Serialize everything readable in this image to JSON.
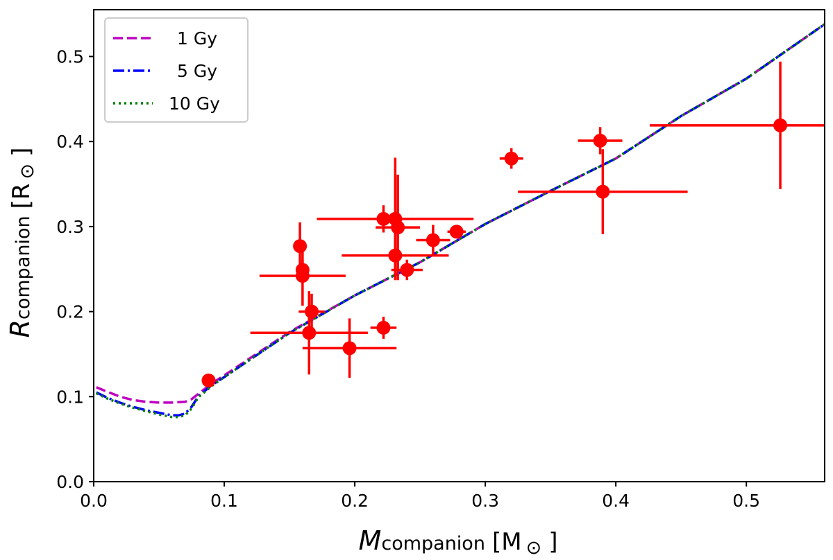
{
  "chart_data": {
    "type": "scatter",
    "xlabel": {
      "main": "M",
      "sub": "companion",
      "unit": "[M",
      "sun": "⊙",
      "close": "]"
    },
    "ylabel": {
      "main": "R",
      "sub": "companion",
      "unit": "[R",
      "sun": "⊙",
      "close": "]"
    },
    "xlim": [
      0.0,
      0.56
    ],
    "ylim": [
      0.0,
      0.555
    ],
    "xticks": [
      "0.0",
      "0.1",
      "0.2",
      "0.3",
      "0.4",
      "0.5"
    ],
    "yticks": [
      "0.0",
      "0.1",
      "0.2",
      "0.3",
      "0.4",
      "0.5"
    ],
    "legend_position": "top-left",
    "colors": {
      "g1": "#bf00bf",
      "g5": "#0000ff",
      "g10": "#007f00",
      "points": "#ff0000"
    },
    "series": [
      {
        "name": "1 Gy",
        "style": "dashed",
        "x": [
          0.002,
          0.01,
          0.02,
          0.03,
          0.04,
          0.05,
          0.06,
          0.07,
          0.075,
          0.08,
          0.09,
          0.1,
          0.15,
          0.2,
          0.25,
          0.3,
          0.35,
          0.4,
          0.45,
          0.5,
          0.56
        ],
        "y": [
          0.111,
          0.106,
          0.1,
          0.096,
          0.094,
          0.093,
          0.093,
          0.094,
          0.097,
          0.103,
          0.115,
          0.125,
          0.176,
          0.219,
          0.258,
          0.303,
          0.342,
          0.38,
          0.43,
          0.474,
          0.538
        ]
      },
      {
        "name": "5 Gy",
        "style": "dashdot",
        "x": [
          0.002,
          0.01,
          0.02,
          0.03,
          0.04,
          0.05,
          0.06,
          0.065,
          0.07,
          0.075,
          0.08,
          0.09,
          0.1,
          0.15,
          0.2,
          0.25,
          0.3,
          0.35,
          0.4,
          0.45,
          0.5,
          0.56
        ],
        "y": [
          0.105,
          0.099,
          0.093,
          0.088,
          0.084,
          0.081,
          0.078,
          0.078,
          0.08,
          0.088,
          0.1,
          0.113,
          0.123,
          0.175,
          0.219,
          0.258,
          0.303,
          0.342,
          0.38,
          0.43,
          0.474,
          0.538
        ]
      },
      {
        "name": "10 Gy",
        "style": "dotted",
        "x": [
          0.002,
          0.01,
          0.02,
          0.03,
          0.04,
          0.05,
          0.06,
          0.065,
          0.07,
          0.075,
          0.08,
          0.09,
          0.1,
          0.15,
          0.2,
          0.25,
          0.3,
          0.35,
          0.4,
          0.45,
          0.5,
          0.56
        ],
        "y": [
          0.104,
          0.098,
          0.092,
          0.087,
          0.083,
          0.079,
          0.076,
          0.076,
          0.078,
          0.086,
          0.099,
          0.112,
          0.123,
          0.175,
          0.219,
          0.258,
          0.303,
          0.342,
          0.38,
          0.43,
          0.474,
          0.538
        ]
      }
    ],
    "points": [
      {
        "x": 0.088,
        "y": 0.119,
        "xerr": 0.003,
        "yerr": 0.007
      },
      {
        "x": 0.158,
        "y": 0.277,
        "xerr": 0.005,
        "yerr": 0.028
      },
      {
        "x": 0.16,
        "y": 0.249,
        "xerr": 0.004,
        "yerr": 0.012
      },
      {
        "x": 0.16,
        "y": 0.242,
        "xerr": 0.033,
        "yerr": 0.035
      },
      {
        "x": 0.167,
        "y": 0.2,
        "xerr": 0.01,
        "yerr": 0.021
      },
      {
        "x": 0.165,
        "y": 0.175,
        "xerr": 0.045,
        "yerr": 0.049
      },
      {
        "x": 0.196,
        "y": 0.157,
        "xerr": 0.036,
        "yerr": 0.035
      },
      {
        "x": 0.222,
        "y": 0.181,
        "xerr": 0.01,
        "yerr": 0.013
      },
      {
        "x": 0.222,
        "y": 0.309,
        "xerr": 0.006,
        "yerr": 0.016
      },
      {
        "x": 0.231,
        "y": 0.309,
        "xerr": 0.06,
        "yerr": 0.072
      },
      {
        "x": 0.233,
        "y": 0.299,
        "xerr": 0.017,
        "yerr": 0.062
      },
      {
        "x": 0.231,
        "y": 0.266,
        "xerr": 0.041,
        "yerr": 0.025
      },
      {
        "x": 0.24,
        "y": 0.249,
        "xerr": 0.012,
        "yerr": 0.012
      },
      {
        "x": 0.26,
        "y": 0.284,
        "xerr": 0.013,
        "yerr": 0.018
      },
      {
        "x": 0.278,
        "y": 0.294,
        "xerr": 0.007,
        "yerr": 0.005
      },
      {
        "x": 0.32,
        "y": 0.38,
        "xerr": 0.009,
        "yerr": 0.012
      },
      {
        "x": 0.388,
        "y": 0.401,
        "xerr": 0.017,
        "yerr": 0.016
      },
      {
        "x": 0.39,
        "y": 0.341,
        "xerr": 0.065,
        "yerr": 0.05
      },
      {
        "x": 0.526,
        "y": 0.419,
        "xerr": 0.1,
        "yerr": 0.075
      }
    ]
  }
}
